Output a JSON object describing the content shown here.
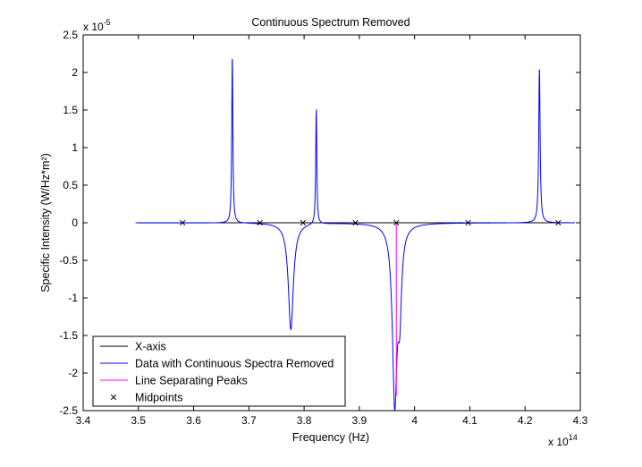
{
  "chart_data": {
    "type": "line",
    "title": "Continuous Spectrum Removed",
    "xlabel": "Frequency (Hz)",
    "ylabel": "Specific Intensity (W/Hz*m²)",
    "xlim": [
      340000000000000.0,
      430000000000000.0
    ],
    "ylim": [
      -2.5e-05,
      2.5e-05
    ],
    "x_ticks": [
      3.4,
      3.5,
      3.6,
      3.7,
      3.8,
      3.9,
      4.0,
      4.1,
      4.2,
      4.3
    ],
    "x_tick_labels": [
      "3.4",
      "3.5",
      "3.6",
      "3.7",
      "3.8",
      "3.9",
      "4",
      "4.1",
      "4.2",
      "4.3"
    ],
    "y_ticks": [
      -2.5,
      -2,
      -1.5,
      -1,
      -0.5,
      0,
      0.5,
      1,
      1.5,
      2,
      2.5
    ],
    "y_tick_labels": [
      "-2.5",
      "-2",
      "-1.5",
      "-1",
      "-0.5",
      "0",
      "0.5",
      "1",
      "1.5",
      "2",
      "2.5"
    ],
    "x_multiplier": {
      "base": "x 10",
      "exponent": "14"
    },
    "y_multiplier": {
      "base": "x 10",
      "exponent": "-5"
    },
    "grid": false,
    "legend_position": "bottom-left",
    "legend": [
      {
        "label": "X-axis",
        "color": "#000000",
        "marker": "line"
      },
      {
        "label": "Data with Continuous Spectra Removed",
        "color": "#0000ff",
        "marker": "line"
      },
      {
        "label": "Line Separating Peaks",
        "color": "#ff00ff",
        "marker": "line"
      },
      {
        "label": "Midpoints",
        "color": "#000000",
        "marker": "x"
      }
    ],
    "series": [
      {
        "name": "X-axis",
        "color": "#000000",
        "x": [
          349500000000000.0,
          429000000000000.0
        ],
        "y": [
          0,
          0
        ]
      },
      {
        "name": "Data with Continuous Spectra Removed",
        "color": "#0000ff",
        "x_range": [
          349500000000000.0,
          429000000000000.0
        ],
        "peaks": [
          {
            "center": 367000000000000.0,
            "amplitude": 2.2e-05,
            "width": 120000000000.0
          },
          {
            "center": 377600000000000.0,
            "amplitude": -1.42e-05,
            "width": 550000000000.0
          },
          {
            "center": 382200000000000.0,
            "amplitude": 1.53e-05,
            "width": 120000000000.0
          },
          {
            "center": 396400000000000.0,
            "amplitude": -2.33e-05,
            "width": 500000000000.0
          },
          {
            "center": 397300000000000.0,
            "amplitude": -1e-05,
            "width": 400000000000.0
          },
          {
            "center": 422600000000000.0,
            "amplitude": 2.05e-05,
            "width": 150000000000.0
          }
        ]
      },
      {
        "name": "Line Separating Peaks",
        "color": "#ff00ff",
        "x": [
          396700000000000.0,
          396700000000000.0
        ],
        "y": [
          0,
          -2.3e-05
        ]
      },
      {
        "name": "Midpoints",
        "color": "#000000",
        "marker": "x",
        "x": [
          358000000000000.0,
          372000000000000.0,
          379800000000000.0,
          389300000000000.0,
          396700000000000.0,
          409700000000000.0,
          426000000000000.0
        ],
        "y": [
          0,
          0,
          0,
          0,
          0,
          0,
          0
        ]
      }
    ]
  }
}
